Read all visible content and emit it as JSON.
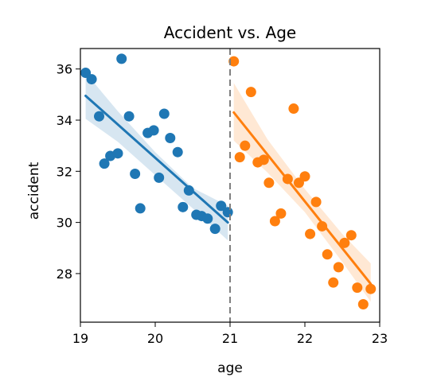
{
  "chart_data": {
    "type": "scatter",
    "title": "Accident vs. Age",
    "xlabel": "age",
    "ylabel": "accident",
    "xlim": [
      19,
      23
    ],
    "ylim": [
      26.1,
      36.8
    ],
    "xticks": [
      19,
      20,
      21,
      22,
      23
    ],
    "yticks": [
      28,
      30,
      32,
      34,
      36
    ],
    "grid": false,
    "legend": "none",
    "vline": {
      "x": 21,
      "style": "dashed",
      "color": "#7f7f7f"
    },
    "series": [
      {
        "color": "#1f77b4",
        "points": [
          [
            19.07,
            35.85
          ],
          [
            19.15,
            35.6
          ],
          [
            19.25,
            34.15
          ],
          [
            19.32,
            32.3
          ],
          [
            19.4,
            32.6
          ],
          [
            19.5,
            32.7
          ],
          [
            19.55,
            36.4
          ],
          [
            19.65,
            34.15
          ],
          [
            19.73,
            31.9
          ],
          [
            19.8,
            30.55
          ],
          [
            19.9,
            33.5
          ],
          [
            19.98,
            33.6
          ],
          [
            20.05,
            31.75
          ],
          [
            20.12,
            34.25
          ],
          [
            20.2,
            33.3
          ],
          [
            20.3,
            32.75
          ],
          [
            20.37,
            30.6
          ],
          [
            20.45,
            31.25
          ],
          [
            20.55,
            30.3
          ],
          [
            20.62,
            30.25
          ],
          [
            20.7,
            30.15
          ],
          [
            20.8,
            29.75
          ],
          [
            20.88,
            30.65
          ],
          [
            20.97,
            30.4
          ]
        ],
        "fit": {
          "x": [
            19.07,
            20.97
          ],
          "y": [
            34.95,
            30.0
          ]
        },
        "band": {
          "x": [
            19.07,
            19.5,
            20.0,
            20.5,
            20.97
          ],
          "upper": [
            35.85,
            34.35,
            32.75,
            31.35,
            30.65
          ],
          "lower": [
            34.05,
            33.15,
            31.85,
            30.55,
            29.3
          ]
        }
      },
      {
        "color": "#ff7f0e",
        "points": [
          [
            21.05,
            36.3
          ],
          [
            21.13,
            32.55
          ],
          [
            21.2,
            33.0
          ],
          [
            21.28,
            35.1
          ],
          [
            21.37,
            32.35
          ],
          [
            21.45,
            32.45
          ],
          [
            21.52,
            31.55
          ],
          [
            21.6,
            30.05
          ],
          [
            21.68,
            30.35
          ],
          [
            21.77,
            31.7
          ],
          [
            21.85,
            34.45
          ],
          [
            21.92,
            31.55
          ],
          [
            22.0,
            31.8
          ],
          [
            22.07,
            29.55
          ],
          [
            22.15,
            30.8
          ],
          [
            22.23,
            29.85
          ],
          [
            22.3,
            28.75
          ],
          [
            22.38,
            27.65
          ],
          [
            22.45,
            28.25
          ],
          [
            22.53,
            29.2
          ],
          [
            22.62,
            29.5
          ],
          [
            22.7,
            27.45
          ],
          [
            22.78,
            26.8
          ],
          [
            22.88,
            27.4
          ]
        ],
        "fit": {
          "x": [
            21.05,
            22.88
          ],
          "y": [
            34.3,
            27.6
          ]
        },
        "band": {
          "x": [
            21.05,
            21.5,
            22.0,
            22.5,
            22.88
          ],
          "upper": [
            35.45,
            33.25,
            31.3,
            29.55,
            28.4
          ],
          "lower": [
            33.2,
            31.95,
            30.4,
            28.45,
            26.9
          ]
        }
      }
    ]
  }
}
